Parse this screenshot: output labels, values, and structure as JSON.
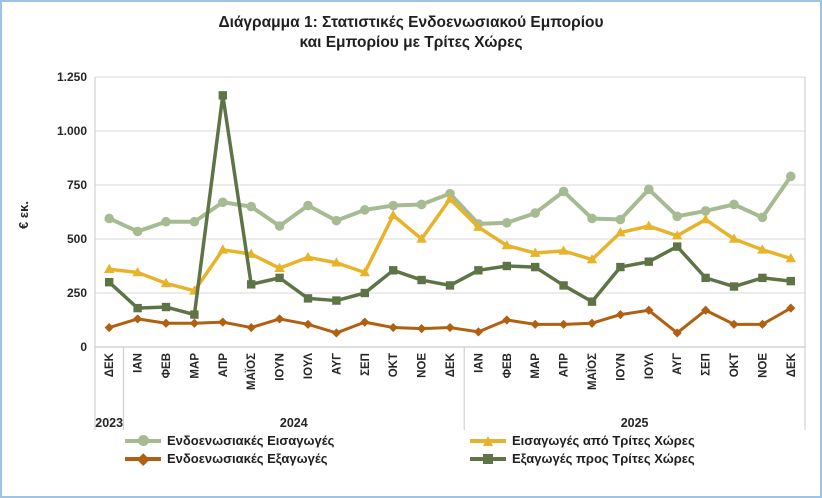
{
  "figure": {
    "title_line1": "Διάγραμμα 1: Στατιστικές Ενδοενωσιακού Εμπορίου",
    "title_line2": "και Εμπορίου με Τρίτες Χώρες",
    "border_color": "#9dc3e6"
  },
  "chart_data": {
    "type": "line",
    "title": "Διάγραμμα 1: Στατιστικές Ενδοενωσιακού Εμπορίου και Εμπορίου με Τρίτες Χώρες",
    "xlabel": "",
    "ylabel": "€ εκ.",
    "ylim": [
      0,
      1250
    ],
    "ytick_values": [
      0,
      250,
      500,
      750,
      1000,
      1250
    ],
    "ytick_labels": [
      "0",
      "250",
      "500",
      "750",
      "1.000",
      "1.250"
    ],
    "grid": "horizontal",
    "legend_position": "bottom",
    "categories": [
      "ΔΕΚ",
      "ΙΑΝ",
      "ΦΕΒ",
      "ΜΑΡ",
      "ΑΠΡ",
      "ΜΑΪΟΣ",
      "ΙΟΥΝ",
      "ΙΟΥΛ",
      "ΑΥΓ",
      "ΣΕΠ",
      "ΟΚΤ",
      "ΝΟΕ",
      "ΔΕΚ",
      "ΙΑΝ",
      "ΦΕΒ",
      "ΜΑΡ",
      "ΑΠΡ",
      "ΜΑΪΟΣ",
      "ΙΟΥΝ",
      "ΙΟΥΛ",
      "ΑΥΓ",
      "ΣΕΠ",
      "ΟΚΤ",
      "ΝΟΕ",
      "ΔΕΚ"
    ],
    "year_groups": [
      {
        "label": "2023",
        "start": 0,
        "end": 0
      },
      {
        "label": "2024",
        "start": 1,
        "end": 12
      },
      {
        "label": "2025",
        "start": 13,
        "end": 24
      }
    ],
    "series": [
      {
        "name": "Ενδοενωσιακές Εισαγωγές",
        "color": "#a6bb92",
        "marker": "circle",
        "values": [
          595,
          535,
          580,
          580,
          670,
          650,
          560,
          655,
          585,
          635,
          655,
          660,
          710,
          570,
          575,
          620,
          720,
          595,
          590,
          730,
          605,
          630,
          660,
          600,
          790
        ]
      },
      {
        "name": "Εισαγωγές από Τρίτες Χώρες",
        "color": "#e6b32a",
        "marker": "triangle",
        "values": [
          360,
          345,
          295,
          260,
          450,
          430,
          365,
          415,
          390,
          345,
          610,
          500,
          685,
          555,
          470,
          435,
          445,
          405,
          530,
          560,
          515,
          590,
          500,
          450,
          410
        ]
      },
      {
        "name": "Ενδοενωσιακές Εξαγωγές",
        "color": "#b15f10",
        "marker": "diamond",
        "values": [
          90,
          130,
          110,
          110,
          115,
          90,
          130,
          105,
          65,
          115,
          90,
          85,
          90,
          70,
          125,
          105,
          105,
          110,
          150,
          170,
          65,
          170,
          105,
          105,
          180
        ]
      },
      {
        "name": "Εξαγωγές προς Τρίτες Χώρες",
        "color": "#5f7446",
        "marker": "square",
        "values": [
          300,
          180,
          185,
          150,
          1165,
          290,
          320,
          225,
          215,
          250,
          355,
          310,
          285,
          355,
          375,
          370,
          285,
          210,
          370,
          395,
          465,
          320,
          280,
          320,
          305
        ]
      }
    ]
  }
}
